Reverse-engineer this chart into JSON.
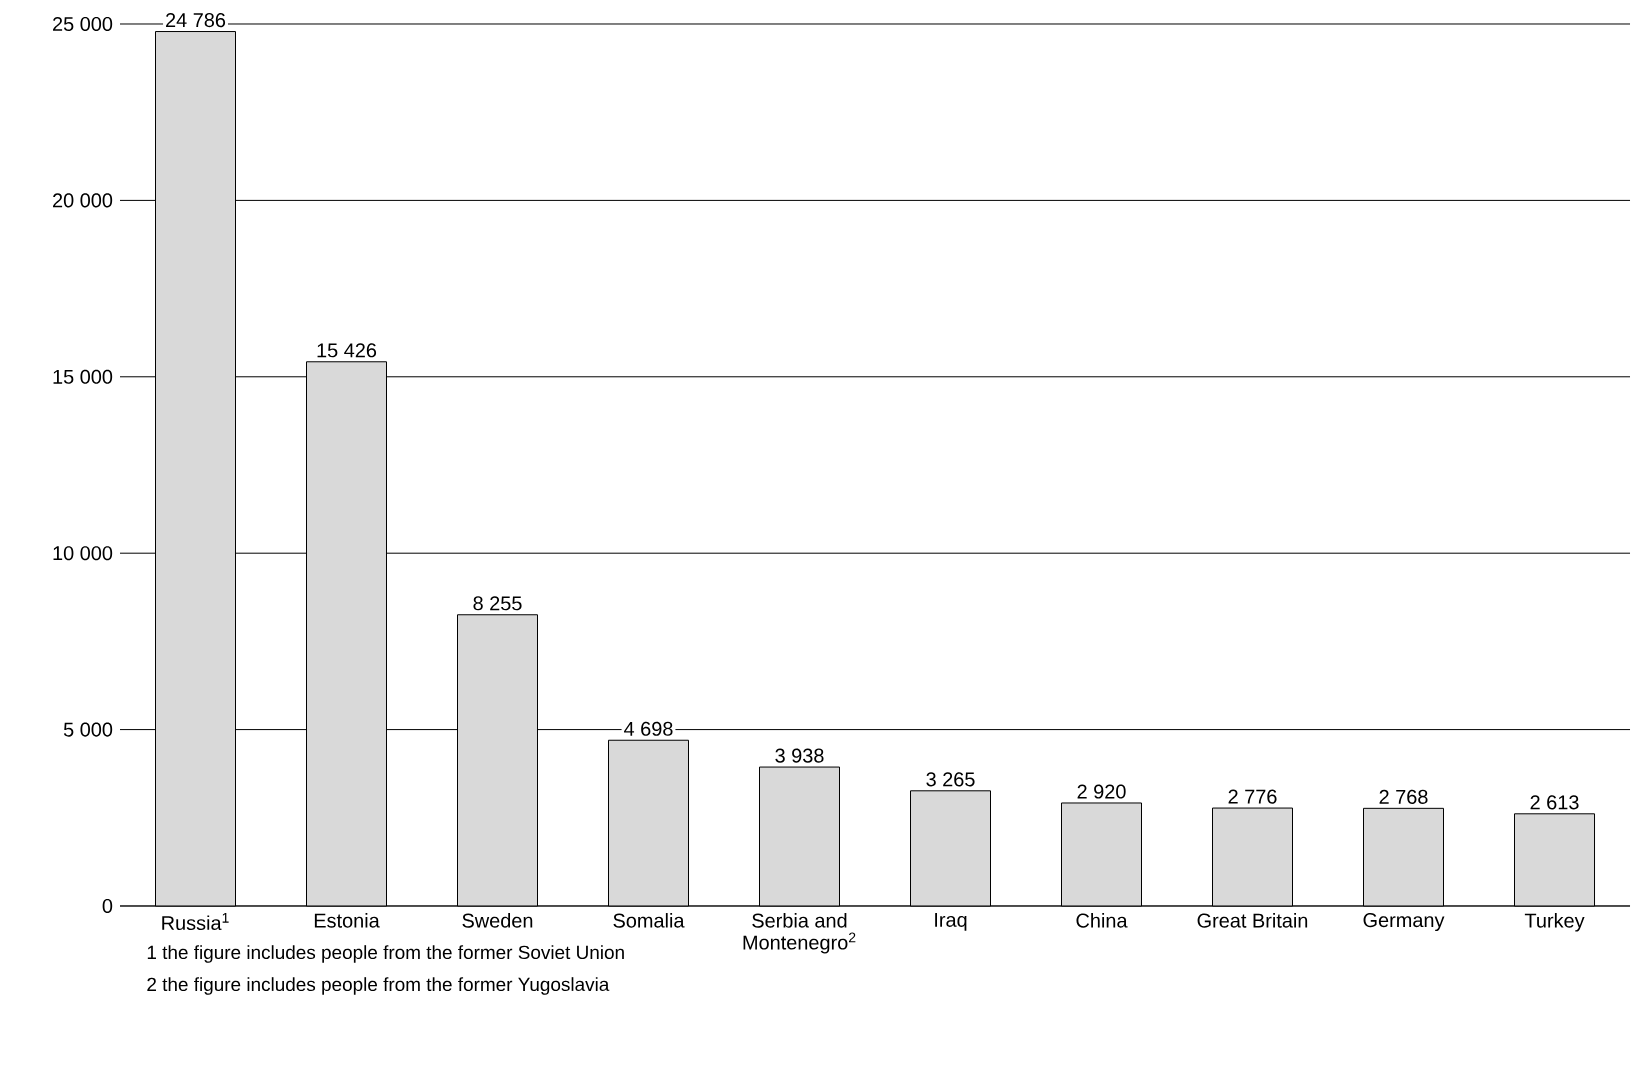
{
  "chart_data": {
    "type": "bar",
    "categories": [
      "Russia$^{1}$",
      "Estonia",
      "Sweden",
      "Somalia",
      "Serbia and Montenegro$^{2}$",
      "Iraq",
      "China",
      "Great Britain",
      "Germany",
      "Turkey"
    ],
    "values": [
      24786,
      15426,
      8255,
      4698,
      3938,
      3265,
      2920,
      2776,
      2768,
      2613
    ],
    "value_labels": [
      "24 786",
      "15 426",
      "8 255",
      "4 698",
      "3 938",
      "3 265",
      "2 920",
      "2 776",
      "2 768",
      "2 613"
    ],
    "color": "#d9d9d9",
    "ylim": [
      0,
      25000
    ],
    "yticks": [
      0,
      {
        "value": 5000,
        "label": "5 000"
      },
      {
        "value": 10000,
        "label": "10 000"
      },
      {
        "value": 15000,
        "label": "15 000"
      },
      {
        "value": 20000,
        "label": "20 000"
      },
      {
        "value": 25000,
        "label": "25 000"
      }
    ],
    "grid": "y",
    "annotations": [
      "1  the figure includes people from the former Soviet Union",
      "2  the figure includes people from the former Yugoslavia"
    ]
  }
}
